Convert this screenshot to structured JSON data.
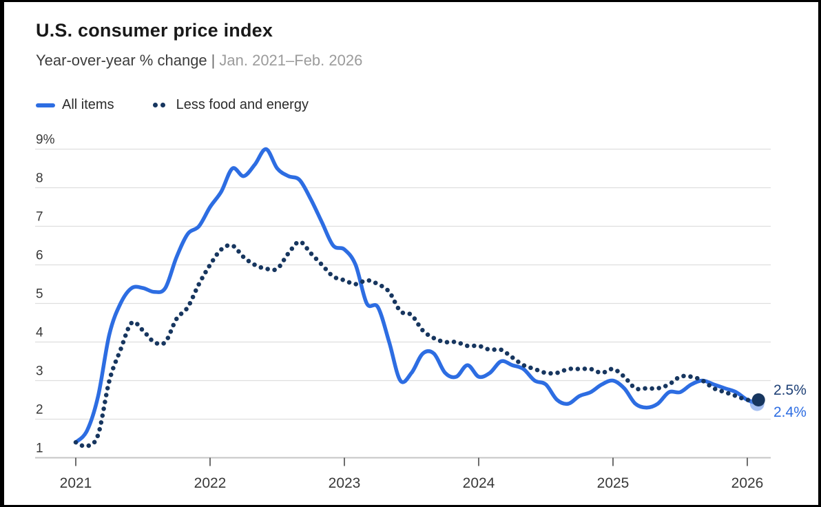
{
  "header": {
    "title": "U.S. consumer price index",
    "subtitle_main": "Year-over-year % change",
    "subtitle_separator": "|",
    "subtitle_range": "Jan. 2021–Feb. 2026"
  },
  "legend": [
    {
      "label": "All items",
      "swatch": "solid-line",
      "color": "#2d6de2"
    },
    {
      "label": "Less food and energy",
      "swatch": "dotted-line",
      "color": "#17365f"
    }
  ],
  "chart_data": {
    "type": "line",
    "title": "U.S. consumer price index",
    "subtitle": "Year-over-year % change",
    "x_start": "Jan 2021",
    "x_end": "Feb 2026",
    "x_interval": "month",
    "ylim": [
      1,
      9
    ],
    "grid": true,
    "y_ticks": [
      {
        "value": 9,
        "label": "9%"
      },
      {
        "value": 8,
        "label": "8"
      },
      {
        "value": 7,
        "label": "7"
      },
      {
        "value": 6,
        "label": "6"
      },
      {
        "value": 5,
        "label": "5"
      },
      {
        "value": 4,
        "label": "4"
      },
      {
        "value": 3,
        "label": "3"
      },
      {
        "value": 2,
        "label": "2"
      },
      {
        "value": 1,
        "label": "1"
      }
    ],
    "x_ticks": [
      {
        "label": "2021",
        "month_index": 0
      },
      {
        "label": "2022",
        "month_index": 12
      },
      {
        "label": "2023",
        "month_index": 24
      },
      {
        "label": "2024",
        "month_index": 36
      },
      {
        "label": "2025",
        "month_index": 48
      },
      {
        "label": "2026",
        "month_index": 60
      }
    ],
    "series": [
      {
        "name": "All items",
        "style": "solid",
        "color": "#2d6de2",
        "values": [
          1.4,
          1.7,
          2.6,
          4.2,
          5.0,
          5.4,
          5.4,
          5.3,
          5.4,
          6.2,
          6.8,
          7.0,
          7.5,
          7.9,
          8.5,
          8.3,
          8.6,
          9.0,
          8.5,
          8.3,
          8.2,
          7.7,
          7.1,
          6.5,
          6.4,
          6.0,
          5.0,
          4.9,
          4.0,
          3.0,
          3.2,
          3.7,
          3.7,
          3.2,
          3.1,
          3.4,
          3.1,
          3.2,
          3.5,
          3.4,
          3.3,
          3.0,
          2.9,
          2.5,
          2.4,
          2.6,
          2.7,
          2.9,
          3.0,
          2.8,
          2.4,
          2.3,
          2.4,
          2.7,
          2.7,
          2.9,
          3.0,
          2.9,
          2.8,
          2.7,
          2.5,
          2.4
        ]
      },
      {
        "name": "Less food and energy",
        "style": "dotted",
        "color": "#17365f",
        "values": [
          1.4,
          1.3,
          1.6,
          3.0,
          3.8,
          4.5,
          4.3,
          4.0,
          4.0,
          4.6,
          4.9,
          5.5,
          6.0,
          6.4,
          6.5,
          6.2,
          6.0,
          5.9,
          5.9,
          6.3,
          6.6,
          6.3,
          6.0,
          5.7,
          5.6,
          5.5,
          5.6,
          5.5,
          5.3,
          4.8,
          4.7,
          4.3,
          4.1,
          4.0,
          4.0,
          3.9,
          3.9,
          3.8,
          3.8,
          3.6,
          3.4,
          3.3,
          3.2,
          3.2,
          3.3,
          3.3,
          3.3,
          3.2,
          3.3,
          3.1,
          2.8,
          2.8,
          2.8,
          2.9,
          3.1,
          3.1,
          3.0,
          2.8,
          2.7,
          2.6,
          2.5,
          2.5
        ]
      }
    ],
    "end_labels": {
      "core": "2.5%",
      "all_items": "2.4%"
    },
    "colors": {
      "all_items_line": "#2d6de2",
      "core_line": "#17365f",
      "end_label_all": "#2d6de2",
      "end_label_core": "#1e4076",
      "gridline": "#dedede",
      "axis_baseline": "#c4c4c4"
    },
    "legend_position": "top-left"
  }
}
